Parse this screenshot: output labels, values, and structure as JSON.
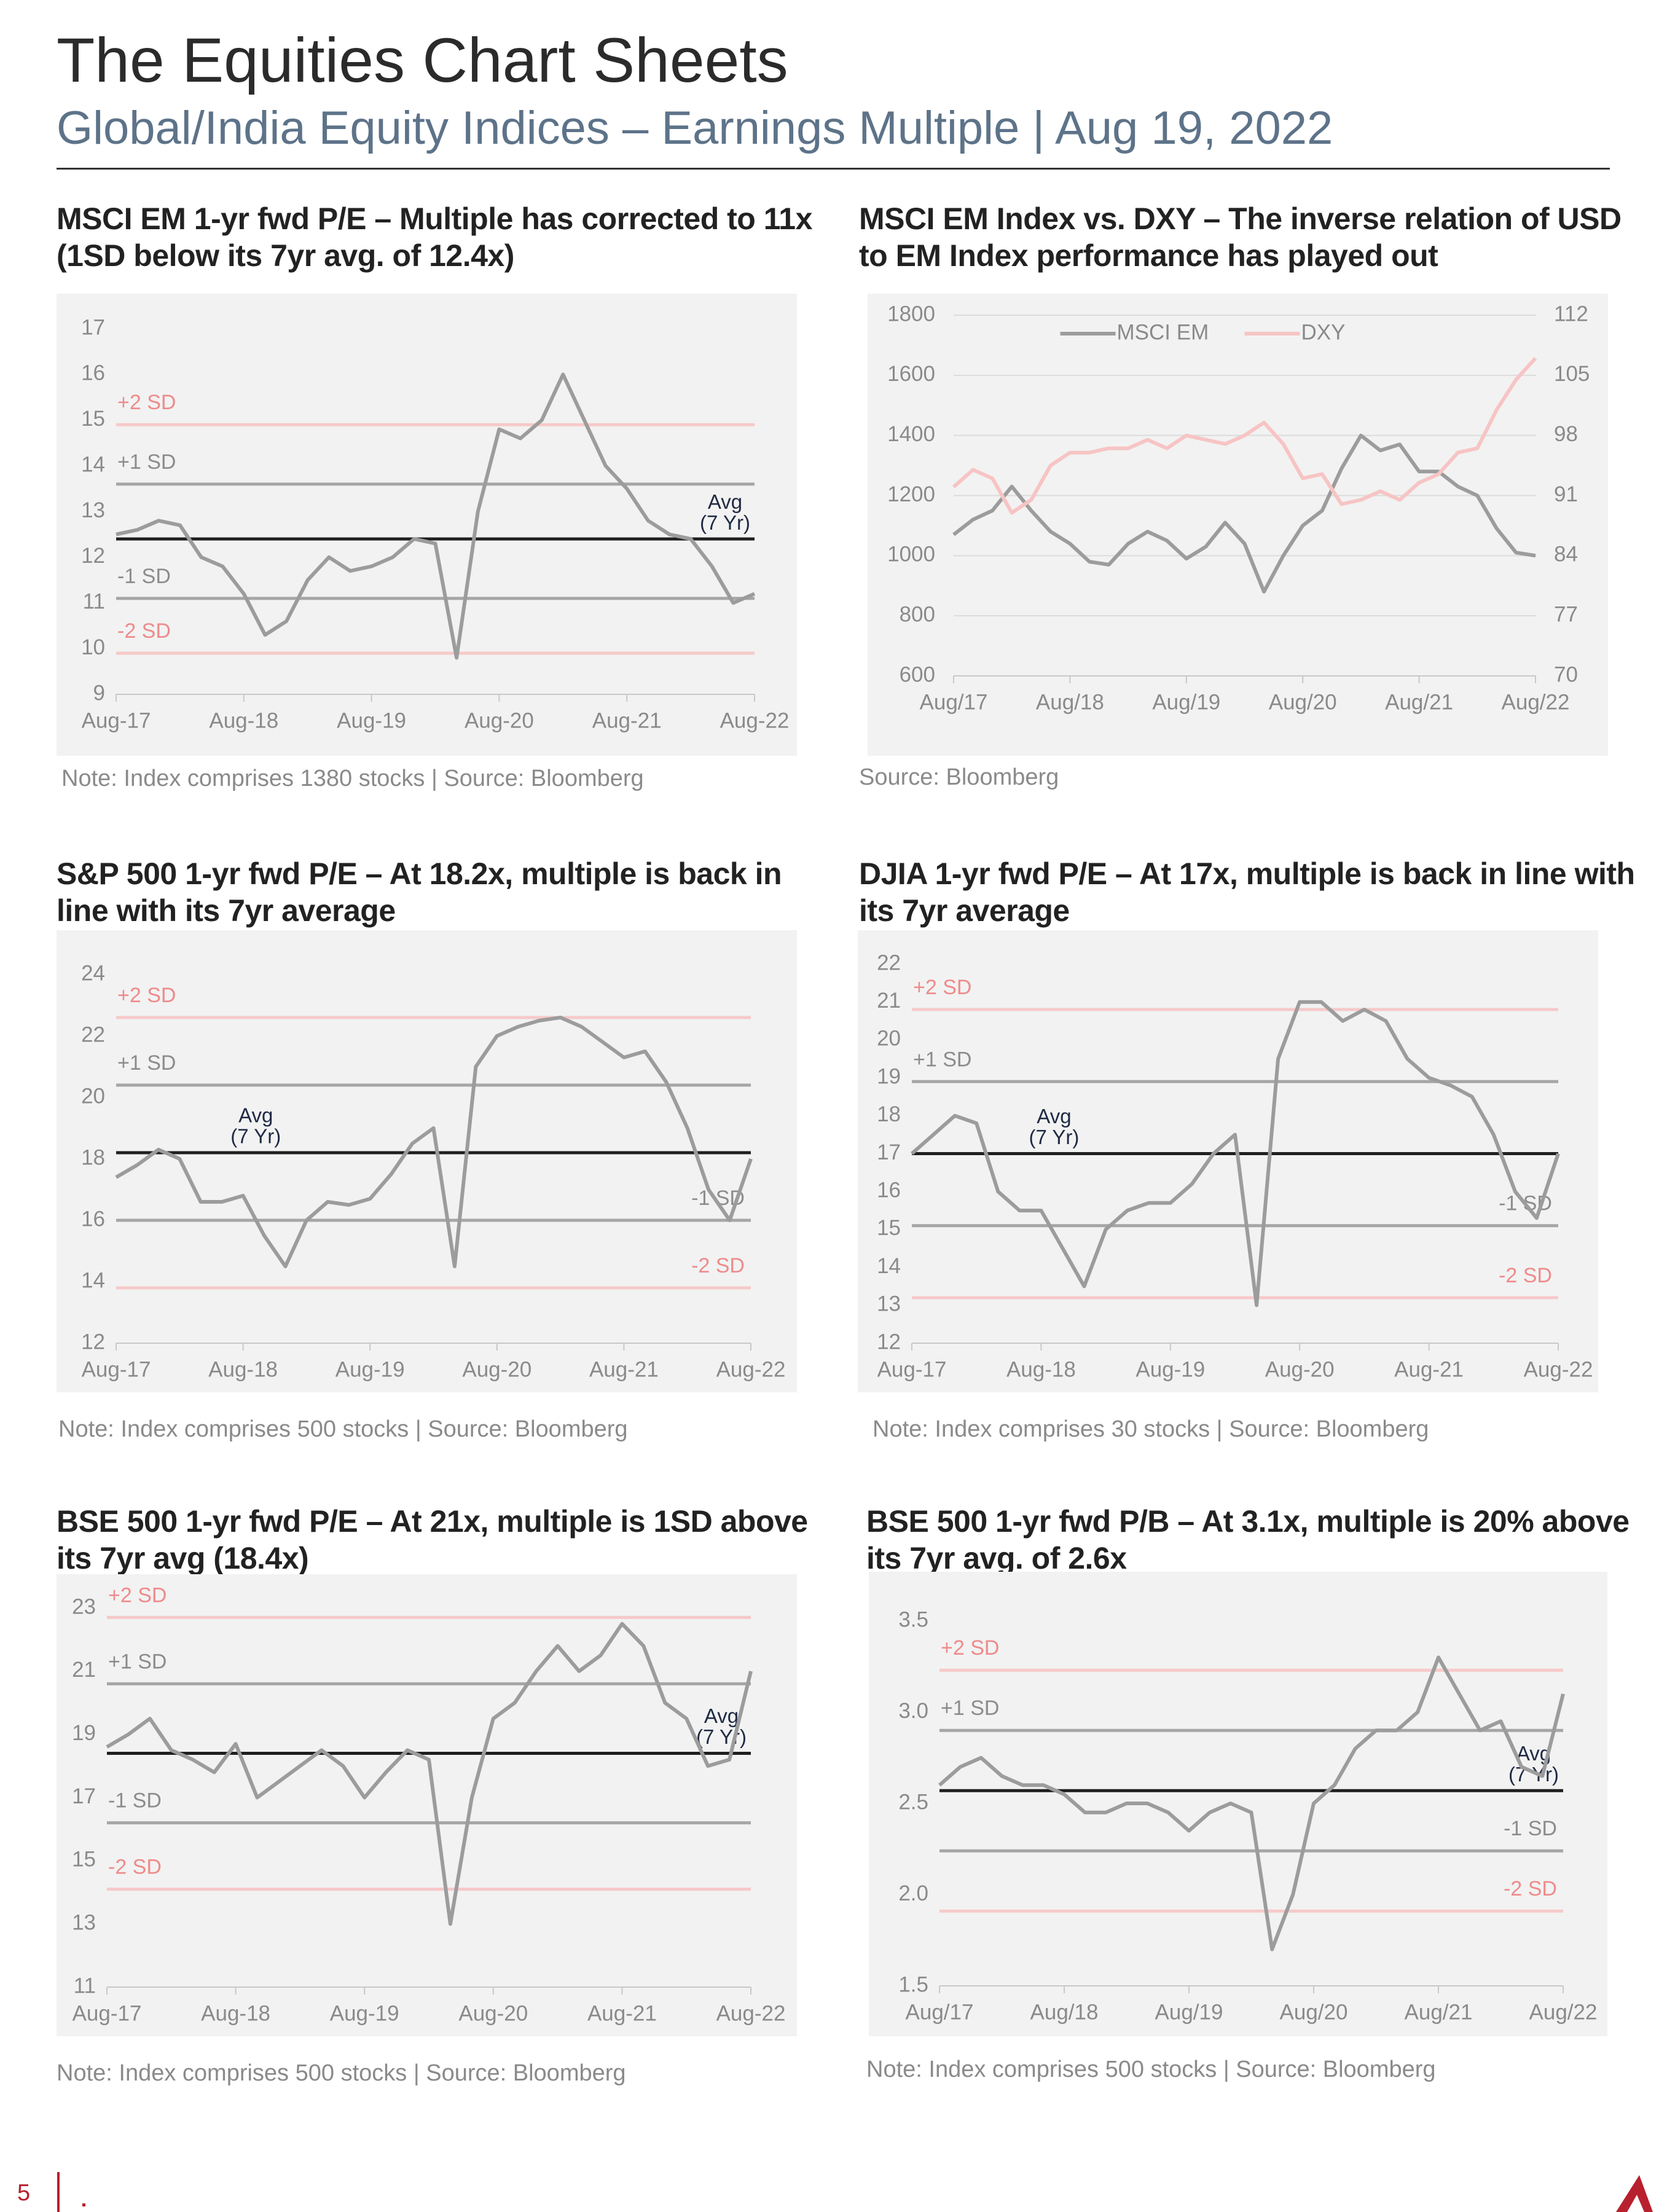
{
  "header": {
    "title": "The Equities Chart Sheets",
    "subtitle": "Global/India Equity Indices – Earnings Multiple | Aug 19, 2022"
  },
  "page_number": "5",
  "chart_data": [
    {
      "type": "line",
      "title": "MSCI EM 1-yr fwd P/E – Multiple has corrected to 11x (1SD below its 7yr avg. of 12.4x)",
      "note": "Note: Index comprises 1380 stocks | Source: Bloomberg",
      "x": [
        "Aug-17",
        "Oct-17",
        "Dec-17",
        "Feb-18",
        "Apr-18",
        "Jun-18",
        "Aug-18",
        "Oct-18",
        "Dec-18",
        "Feb-19",
        "Apr-19",
        "Jun-19",
        "Aug-19",
        "Oct-19",
        "Dec-19",
        "Feb-20",
        "Apr-20",
        "Jun-20",
        "Aug-20",
        "Oct-20",
        "Dec-20",
        "Feb-21",
        "Apr-21",
        "Jun-21",
        "Aug-21",
        "Oct-21",
        "Dec-21",
        "Feb-22",
        "Apr-22",
        "Jun-22",
        "Aug-22"
      ],
      "xticks": [
        "Aug-17",
        "Aug-18",
        "Aug-19",
        "Aug-20",
        "Aug-21",
        "Aug-22"
      ],
      "ylim": [
        9,
        17
      ],
      "yticks": [
        9,
        10,
        11,
        12,
        13,
        14,
        15,
        16,
        17
      ],
      "series": [
        {
          "color": "#9c9c9c",
          "values": [
            12.5,
            12.6,
            12.8,
            12.7,
            12.0,
            11.8,
            11.2,
            10.3,
            10.6,
            11.5,
            12.0,
            11.7,
            11.8,
            12.0,
            12.4,
            12.3,
            9.8,
            13.0,
            14.8,
            14.6,
            15.0,
            16.0,
            15.0,
            14.0,
            13.5,
            12.8,
            12.5,
            12.4,
            11.8,
            11.0,
            11.2
          ]
        }
      ],
      "reference_lines": [
        {
          "label": "+2 SD",
          "value": 14.9,
          "color": "#f7c9c9",
          "label_color": "#ee8b8b",
          "label_position": "left"
        },
        {
          "label": "+1 SD",
          "value": 13.6,
          "color": "#a6a6a6",
          "label_color": "#8c8c8c",
          "label_position": "left"
        },
        {
          "label": "Avg",
          "sublabel": "(7 Yr)",
          "value": 12.4,
          "color": "#1f1f1f",
          "label_color": "#1f2a44",
          "label_position": "right"
        },
        {
          "label": "-1 SD",
          "value": 11.1,
          "color": "#a6a6a6",
          "label_color": "#8c8c8c",
          "label_position": "left"
        },
        {
          "label": "-2 SD",
          "value": 9.9,
          "color": "#f7c9c9",
          "label_color": "#ee8b8b",
          "label_position": "left"
        }
      ]
    },
    {
      "type": "line",
      "title": "MSCI EM Index vs. DXY – The inverse relation of USD to EM Index performance has played out",
      "note": "Source: Bloomberg",
      "x": [
        "Aug/17",
        "Oct/17",
        "Dec/17",
        "Feb/18",
        "Apr/18",
        "Jun/18",
        "Aug/18",
        "Oct/18",
        "Dec/18",
        "Feb/19",
        "Apr/19",
        "Jun/19",
        "Aug/19",
        "Oct/19",
        "Dec/19",
        "Feb/20",
        "Apr/20",
        "Jun/20",
        "Aug/20",
        "Oct/20",
        "Dec/20",
        "Feb/21",
        "Apr/21",
        "Jun/21",
        "Aug/21",
        "Oct/21",
        "Dec/21",
        "Feb/22",
        "Apr/22",
        "Jun/22",
        "Aug/22"
      ],
      "xticks": [
        "Aug/17",
        "Aug/18",
        "Aug/19",
        "Aug/20",
        "Aug/21",
        "Aug/22"
      ],
      "ylim": [
        600,
        1800
      ],
      "yticks": [
        600,
        800,
        1000,
        1200,
        1400,
        1600,
        1800
      ],
      "y2lim": [
        70,
        112
      ],
      "y2ticks": [
        70,
        77,
        84,
        91,
        98,
        105,
        112
      ],
      "grid": true,
      "legend": "top",
      "series": [
        {
          "name": "MSCI EM",
          "color": "#9c9c9c",
          "values": [
            1070,
            1120,
            1150,
            1230,
            1150,
            1080,
            1040,
            980,
            970,
            1040,
            1080,
            1050,
            990,
            1030,
            1110,
            1040,
            880,
            1000,
            1100,
            1150,
            1290,
            1400,
            1350,
            1370,
            1280,
            1280,
            1230,
            1200,
            1090,
            1010,
            1000
          ]
        },
        {
          "name": "DXY",
          "color": "#f7c4c4",
          "axis": "y2",
          "values": [
            92,
            94,
            93,
            89,
            90.5,
            94.5,
            96,
            96,
            96.5,
            96.5,
            97.5,
            96.5,
            98,
            97.5,
            97,
            98,
            99.5,
            97,
            93,
            93.5,
            90,
            90.5,
            91.5,
            90.5,
            92.5,
            93.5,
            96,
            96.5,
            101,
            104.5,
            107
          ]
        }
      ]
    },
    {
      "type": "line",
      "title": "S&P 500 1-yr fwd P/E – At 18.2x, multiple is back in line with its 7yr average",
      "note": "Note: Index comprises 500 stocks | Source: Bloomberg",
      "x": [
        "Aug-17",
        "Oct-17",
        "Dec-17",
        "Feb-18",
        "Apr-18",
        "Jun-18",
        "Aug-18",
        "Oct-18",
        "Dec-18",
        "Feb-19",
        "Apr-19",
        "Jun-19",
        "Aug-19",
        "Oct-19",
        "Dec-19",
        "Feb-20",
        "Apr-20",
        "Jun-20",
        "Aug-20",
        "Oct-20",
        "Dec-20",
        "Feb-21",
        "Apr-21",
        "Jun-21",
        "Aug-21",
        "Oct-21",
        "Dec-21",
        "Feb-22",
        "Apr-22",
        "Jun-22",
        "Aug-22"
      ],
      "xticks": [
        "Aug-17",
        "Aug-18",
        "Aug-19",
        "Aug-20",
        "Aug-21",
        "Aug-22"
      ],
      "ylim": [
        12,
        24
      ],
      "yticks": [
        12,
        14,
        16,
        18,
        20,
        22,
        24
      ],
      "series": [
        {
          "color": "#9c9c9c",
          "values": [
            17.4,
            17.8,
            18.3,
            18.0,
            16.6,
            16.6,
            16.8,
            15.5,
            14.5,
            16.0,
            16.6,
            16.5,
            16.7,
            17.5,
            18.5,
            19.0,
            14.5,
            21.0,
            22.0,
            22.3,
            22.5,
            22.6,
            22.3,
            21.8,
            21.3,
            21.5,
            20.5,
            19.0,
            17.0,
            16.0,
            18.0
          ]
        }
      ],
      "reference_lines": [
        {
          "label": "+2 SD",
          "value": 22.6,
          "color": "#f7c9c9",
          "label_color": "#ee8b8b",
          "label_position": "left"
        },
        {
          "label": "+1 SD",
          "value": 20.4,
          "color": "#a6a6a6",
          "label_color": "#8c8c8c",
          "label_position": "left"
        },
        {
          "label": "Avg",
          "sublabel": "(7 Yr)",
          "value": 18.2,
          "color": "#1f1f1f",
          "label_color": "#1f2a44",
          "label_position": "left"
        },
        {
          "label": "-1 SD",
          "value": 16.0,
          "color": "#a6a6a6",
          "label_color": "#8c8c8c",
          "label_position": "right"
        },
        {
          "label": "-2 SD",
          "value": 13.8,
          "color": "#f7c9c9",
          "label_color": "#ee8b8b",
          "label_position": "right"
        }
      ]
    },
    {
      "type": "line",
      "title": "DJIA 1-yr fwd P/E – At 17x, multiple is back in line with its 7yr average",
      "note": "Note: Index comprises 30 stocks | Source: Bloomberg",
      "x": [
        "Aug-17",
        "Oct-17",
        "Dec-17",
        "Feb-18",
        "Apr-18",
        "Jun-18",
        "Aug-18",
        "Oct-18",
        "Dec-18",
        "Feb-19",
        "Apr-19",
        "Jun-19",
        "Aug-19",
        "Oct-19",
        "Dec-19",
        "Feb-20",
        "Apr-20",
        "Jun-20",
        "Aug-20",
        "Oct-20",
        "Dec-20",
        "Feb-21",
        "Apr-21",
        "Jun-21",
        "Aug-21",
        "Oct-21",
        "Dec-21",
        "Feb-22",
        "Apr-22",
        "Jun-22",
        "Aug-22"
      ],
      "xticks": [
        "Aug-17",
        "Aug-18",
        "Aug-19",
        "Aug-20",
        "Aug-21",
        "Aug-22"
      ],
      "ylim": [
        12,
        22
      ],
      "yticks": [
        12,
        13,
        14,
        15,
        16,
        17,
        18,
        19,
        20,
        21,
        22
      ],
      "series": [
        {
          "color": "#9c9c9c",
          "values": [
            17.0,
            17.5,
            18.0,
            17.8,
            16.0,
            15.5,
            15.5,
            14.5,
            13.5,
            15.0,
            15.5,
            15.7,
            15.7,
            16.2,
            17.0,
            17.5,
            13.0,
            19.5,
            21.0,
            21.0,
            20.5,
            20.8,
            20.5,
            19.5,
            19.0,
            18.8,
            18.5,
            17.5,
            16.0,
            15.3,
            17.0
          ]
        }
      ],
      "reference_lines": [
        {
          "label": "+2 SD",
          "value": 20.8,
          "color": "#f7c9c9",
          "label_color": "#ee8b8b",
          "label_position": "left"
        },
        {
          "label": "+1 SD",
          "value": 18.9,
          "color": "#a6a6a6",
          "label_color": "#8c8c8c",
          "label_position": "left"
        },
        {
          "label": "Avg",
          "sublabel": "(7 Yr)",
          "value": 17.0,
          "color": "#1f1f1f",
          "label_color": "#1f2a44",
          "label_position": "left"
        },
        {
          "label": "-1 SD",
          "value": 15.1,
          "color": "#a6a6a6",
          "label_color": "#8c8c8c",
          "label_position": "right"
        },
        {
          "label": "-2 SD",
          "value": 13.2,
          "color": "#f7c9c9",
          "label_color": "#ee8b8b",
          "label_position": "right"
        }
      ]
    },
    {
      "type": "line",
      "title": "BSE 500 1-yr fwd P/E – At 21x, multiple is 1SD above its 7yr avg (18.4x)",
      "note": "Note: Index comprises 500 stocks | Source: Bloomberg",
      "x": [
        "Aug-17",
        "Oct-17",
        "Dec-17",
        "Feb-18",
        "Apr-18",
        "Jun-18",
        "Aug-18",
        "Oct-18",
        "Dec-18",
        "Feb-19",
        "Apr-19",
        "Jun-19",
        "Aug-19",
        "Oct-19",
        "Dec-19",
        "Feb-20",
        "Apr-20",
        "Jun-20",
        "Aug-20",
        "Oct-20",
        "Dec-20",
        "Feb-21",
        "Apr-21",
        "Jun-21",
        "Aug-21",
        "Oct-21",
        "Dec-21",
        "Feb-22",
        "Apr-22",
        "Jun-22",
        "Aug-22"
      ],
      "xticks": [
        "Aug-17",
        "Aug-18",
        "Aug-19",
        "Aug-20",
        "Aug-21",
        "Aug-22"
      ],
      "ylim": [
        11,
        23
      ],
      "yticks": [
        11,
        13,
        15,
        17,
        19,
        21,
        23
      ],
      "series": [
        {
          "color": "#9c9c9c",
          "values": [
            18.6,
            19.0,
            19.5,
            18.5,
            18.2,
            17.8,
            18.7,
            17.0,
            17.5,
            18.0,
            18.5,
            18.0,
            17.0,
            17.8,
            18.5,
            18.2,
            13.0,
            17.0,
            19.5,
            20.0,
            21.0,
            21.8,
            21.0,
            21.5,
            22.5,
            21.8,
            20.0,
            19.5,
            18.0,
            18.2,
            21.0
          ]
        }
      ],
      "reference_lines": [
        {
          "label": "+2 SD",
          "value": 22.7,
          "color": "#f7c9c9",
          "label_color": "#ee8b8b",
          "label_position": "left"
        },
        {
          "label": "+1 SD",
          "value": 20.6,
          "color": "#a6a6a6",
          "label_color": "#8c8c8c",
          "label_position": "left"
        },
        {
          "label": "Avg",
          "sublabel": "(7 Yr)",
          "value": 18.4,
          "color": "#1f1f1f",
          "label_color": "#1f2a44",
          "label_position": "right"
        },
        {
          "label": "-1 SD",
          "value": 16.2,
          "color": "#a6a6a6",
          "label_color": "#8c8c8c",
          "label_position": "left"
        },
        {
          "label": "-2 SD",
          "value": 14.1,
          "color": "#f7c9c9",
          "label_color": "#ee8b8b",
          "label_position": "left"
        }
      ]
    },
    {
      "type": "line",
      "title": "BSE 500 1-yr fwd P/B – At 3.1x, multiple is 20% above its 7yr avg. of  2.6x",
      "note": "Note: Index comprises 500 stocks | Source: Bloomberg",
      "x": [
        "Aug/17",
        "Oct/17",
        "Dec/17",
        "Feb/18",
        "Apr/18",
        "Jun/18",
        "Aug/18",
        "Oct/18",
        "Dec/18",
        "Feb/19",
        "Apr/19",
        "Jun/19",
        "Aug/19",
        "Oct/19",
        "Dec/19",
        "Feb/20",
        "Apr/20",
        "Jun/20",
        "Aug/20",
        "Oct/20",
        "Dec/20",
        "Feb/21",
        "Apr/21",
        "Jun/21",
        "Aug/21",
        "Oct/21",
        "Dec/21",
        "Feb/22",
        "Apr/22",
        "Jun/22",
        "Aug/22"
      ],
      "xticks": [
        "Aug/17",
        "Aug/18",
        "Aug/19",
        "Aug/20",
        "Aug/21",
        "Aug/22"
      ],
      "ylim": [
        1.5,
        3.5
      ],
      "yticks": [
        1.5,
        {
          "value": 2,
          "label": "2.0"
        },
        2.5,
        {
          "value": 3,
          "label": "3.0"
        },
        3.5
      ],
      "series": [
        {
          "color": "#9c9c9c",
          "values": [
            2.6,
            2.7,
            2.75,
            2.65,
            2.6,
            2.6,
            2.55,
            2.45,
            2.45,
            2.5,
            2.5,
            2.45,
            2.35,
            2.45,
            2.5,
            2.45,
            1.7,
            2.0,
            2.5,
            2.6,
            2.8,
            2.9,
            2.9,
            3.0,
            3.3,
            3.1,
            2.9,
            2.95,
            2.7,
            2.65,
            3.1
          ]
        }
      ],
      "reference_lines": [
        {
          "label": "+2 SD",
          "value": 3.23,
          "color": "#f7c9c9",
          "label_color": "#ee8b8b",
          "label_position": "left"
        },
        {
          "label": "+1 SD",
          "value": 2.9,
          "color": "#a6a6a6",
          "label_color": "#8c8c8c",
          "label_position": "left"
        },
        {
          "label": "Avg",
          "sublabel": "(7 Yr)",
          "value": 2.57,
          "color": "#1f1f1f",
          "label_color": "#1f2a44",
          "label_position": "right"
        },
        {
          "label": "-1 SD",
          "value": 2.24,
          "color": "#a6a6a6",
          "label_color": "#8c8c8c",
          "label_position": "right"
        },
        {
          "label": "-2 SD",
          "value": 1.91,
          "color": "#f7c9c9",
          "label_color": "#ee8b8b",
          "label_position": "right"
        }
      ]
    }
  ]
}
